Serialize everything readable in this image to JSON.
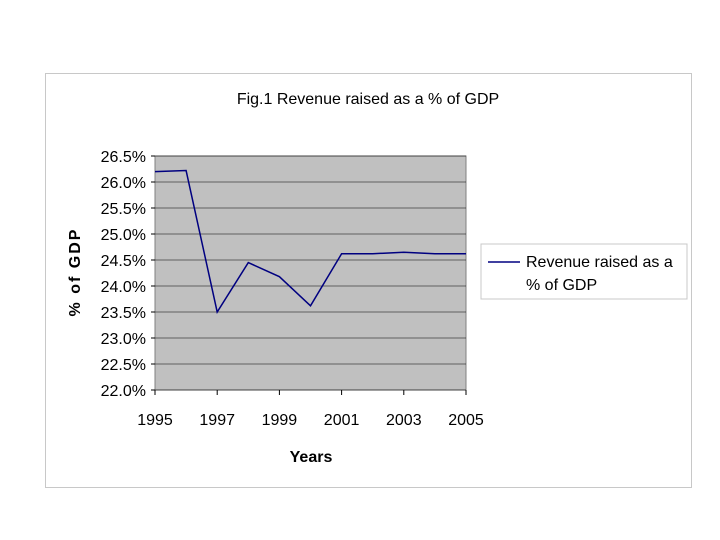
{
  "chart_data": {
    "type": "line",
    "title": "Fig.1 Revenue raised as a % of GDP",
    "xlabel": "Years",
    "ylabel": "% of GDP",
    "x": [
      1995,
      1996,
      1997,
      1998,
      1999,
      2000,
      2001,
      2002,
      2003,
      2004,
      2005
    ],
    "xlim": [
      1995,
      2005
    ],
    "x_tick_labels": [
      "1995",
      "1997",
      "1999",
      "2001",
      "2003",
      "2005"
    ],
    "ylim": [
      22.0,
      26.5
    ],
    "y_ticks": [
      22.0,
      22.5,
      23.0,
      23.5,
      24.0,
      24.5,
      25.0,
      25.5,
      26.0,
      26.5
    ],
    "y_tick_labels": [
      "22.0%",
      "22.5%",
      "23.0%",
      "23.5%",
      "24.0%",
      "24.5%",
      "25.0%",
      "25.5%",
      "26.0%",
      "26.5%"
    ],
    "series": [
      {
        "name": "Revenue raised as a % of GDP",
        "legend_lines": [
          "Revenue raised as a",
          "% of GDP"
        ],
        "values": [
          26.2,
          26.22,
          23.5,
          24.45,
          24.18,
          23.62,
          24.62,
          24.62,
          24.65,
          24.62,
          24.62
        ]
      }
    ],
    "grid": true,
    "legend_position": "right"
  },
  "colors": {
    "plot_background": "#c0c0c0",
    "line": "#000080",
    "grid": "#000000"
  }
}
